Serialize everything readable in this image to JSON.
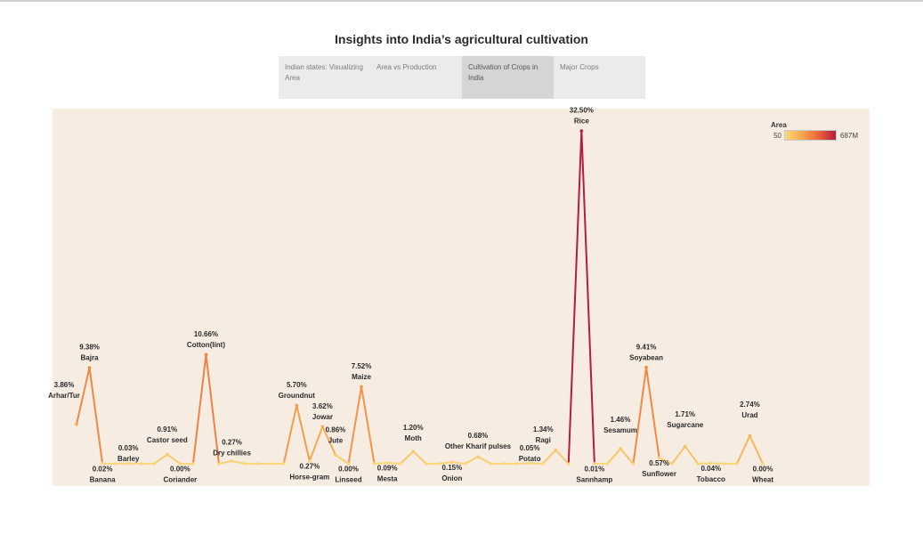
{
  "title": "Insights into India’s agricultural cultivation",
  "tabs": [
    {
      "label": "Indian states: Visualizing Area",
      "active": false
    },
    {
      "label": "Area vs Production",
      "active": false
    },
    {
      "label": "Cultivation of Crops in India",
      "active": true
    },
    {
      "label": "Major Crops",
      "active": false
    }
  ],
  "legend": {
    "title": "Area",
    "min": "50",
    "max": "687M",
    "colors": [
      "#f9d77a",
      "#f7a64e",
      "#e8643c",
      "#b41d3d"
    ]
  },
  "chart_data": {
    "type": "line",
    "y_unit": "percent of total area",
    "points": [
      {
        "crop": "Arhar/Tur",
        "pct": 3.86,
        "label": "3.86%"
      },
      {
        "crop": "Bajra",
        "pct": 9.38,
        "label": "9.38%"
      },
      {
        "crop": "Banana",
        "pct": 0.02,
        "label": "0.02%"
      },
      {
        "crop": "",
        "pct": 0.0
      },
      {
        "crop": "Barley",
        "pct": 0.03,
        "label": "0.03%"
      },
      {
        "crop": "",
        "pct": 0.0
      },
      {
        "crop": "",
        "pct": 0.0
      },
      {
        "crop": "Castor seed",
        "pct": 0.91,
        "label": "0.91%"
      },
      {
        "crop": "Coriander",
        "pct": 0.0,
        "label": "0.00%"
      },
      {
        "crop": "",
        "pct": 0.0
      },
      {
        "crop": "Cotton(lint)",
        "pct": 10.66,
        "label": "10.66%"
      },
      {
        "crop": "",
        "pct": 0.0
      },
      {
        "crop": "Dry chillies",
        "pct": 0.27,
        "label": "0.27%"
      },
      {
        "crop": "",
        "pct": 0.0
      },
      {
        "crop": "",
        "pct": 0.0
      },
      {
        "crop": "",
        "pct": 0.0
      },
      {
        "crop": "",
        "pct": 0.0
      },
      {
        "crop": "Groundnut",
        "pct": 5.7,
        "label": "5.70%"
      },
      {
        "crop": "Horse-gram",
        "pct": 0.27,
        "label": "0.27%"
      },
      {
        "crop": "Jowar",
        "pct": 3.62,
        "label": "3.62%"
      },
      {
        "crop": "Jute",
        "pct": 0.86,
        "label": "0.86%"
      },
      {
        "crop": "Linseed",
        "pct": 0.0,
        "label": "0.00%"
      },
      {
        "crop": "Maize",
        "pct": 7.52,
        "label": "7.52%"
      },
      {
        "crop": "",
        "pct": 0.0
      },
      {
        "crop": "Mesta",
        "pct": 0.09,
        "label": "0.09%"
      },
      {
        "crop": "",
        "pct": 0.0
      },
      {
        "crop": "Moth",
        "pct": 1.2,
        "label": "1.20%"
      },
      {
        "crop": "",
        "pct": 0.0
      },
      {
        "crop": "",
        "pct": 0.0
      },
      {
        "crop": "Onion",
        "pct": 0.15,
        "label": "0.15%"
      },
      {
        "crop": "",
        "pct": 0.0
      },
      {
        "crop": "Other Kharif pulses",
        "pct": 0.68,
        "label": "0.68%"
      },
      {
        "crop": "",
        "pct": 0.0
      },
      {
        "crop": "",
        "pct": 0.0
      },
      {
        "crop": "",
        "pct": 0.0
      },
      {
        "crop": "Potato",
        "pct": 0.05,
        "label": "0.05%"
      },
      {
        "crop": "",
        "pct": 0.0
      },
      {
        "crop": "Ragi",
        "pct": 1.34,
        "label": "1.34%"
      },
      {
        "crop": "",
        "pct": 0.0
      },
      {
        "crop": "Rice",
        "pct": 32.5,
        "label": "32.50%"
      },
      {
        "crop": "Sannhamp",
        "pct": 0.01,
        "label": "0.01%"
      },
      {
        "crop": "",
        "pct": 0.0
      },
      {
        "crop": "Sesamum",
        "pct": 1.46,
        "label": "1.46%"
      },
      {
        "crop": "",
        "pct": 0.0
      },
      {
        "crop": "Soyabean",
        "pct": 9.41,
        "label": "9.41%"
      },
      {
        "crop": "Sunflower",
        "pct": 0.57,
        "label": "0.57%"
      },
      {
        "crop": "",
        "pct": 0.0
      },
      {
        "crop": "Sugarcane",
        "pct": 1.71,
        "label": "1.71%"
      },
      {
        "crop": "",
        "pct": 0.0
      },
      {
        "crop": "Tobacco",
        "pct": 0.04,
        "label": "0.04%"
      },
      {
        "crop": "",
        "pct": 0.0
      },
      {
        "crop": "",
        "pct": 0.0
      },
      {
        "crop": "Urad",
        "pct": 2.74,
        "label": "2.74%"
      },
      {
        "crop": "Wheat",
        "pct": 0.0,
        "label": "0.00%"
      }
    ],
    "ylim": [
      0,
      32.5
    ],
    "grid": false,
    "legend_position": "top-right"
  }
}
